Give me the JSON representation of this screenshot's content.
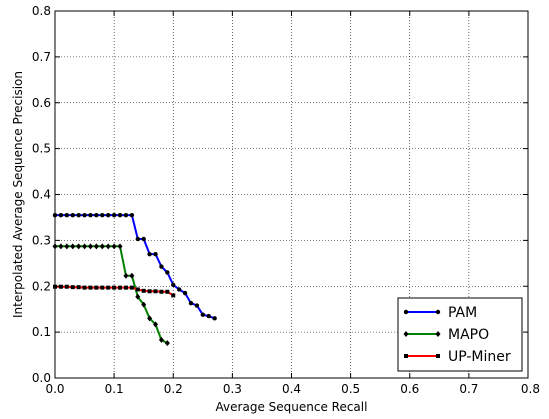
{
  "chart_data": {
    "type": "line",
    "xlabel": "Average Sequence Recall",
    "ylabel": "Interpolated Average Sequence Precision",
    "xlim": [
      0.0,
      0.8
    ],
    "ylim": [
      0.0,
      0.8
    ],
    "x_ticks": [
      "0.0",
      "0.1",
      "0.2",
      "0.3",
      "0.4",
      "0.5",
      "0.6",
      "0.7",
      "0.8"
    ],
    "y_ticks": [
      "0.0",
      "0.1",
      "0.2",
      "0.3",
      "0.4",
      "0.5",
      "0.6",
      "0.7",
      "0.8"
    ],
    "grid": true,
    "legend_position": "bottom-right",
    "series": [
      {
        "name": "PAM",
        "color": "#0000ff",
        "x": [
          0.0,
          0.01,
          0.02,
          0.03,
          0.04,
          0.05,
          0.06,
          0.07,
          0.08,
          0.09,
          0.1,
          0.11,
          0.12,
          0.13,
          0.14,
          0.15,
          0.16,
          0.17,
          0.18,
          0.19,
          0.2,
          0.21,
          0.22,
          0.23,
          0.24,
          0.25,
          0.26,
          0.27
        ],
        "y": [
          0.355,
          0.355,
          0.355,
          0.355,
          0.355,
          0.355,
          0.355,
          0.355,
          0.355,
          0.355,
          0.355,
          0.355,
          0.355,
          0.355,
          0.303,
          0.303,
          0.27,
          0.27,
          0.243,
          0.23,
          0.203,
          0.193,
          0.185,
          0.163,
          0.158,
          0.138,
          0.135,
          0.13
        ]
      },
      {
        "name": "MAPO",
        "color": "#008000",
        "x": [
          0.0,
          0.01,
          0.02,
          0.03,
          0.04,
          0.05,
          0.06,
          0.07,
          0.08,
          0.09,
          0.1,
          0.11,
          0.12,
          0.13,
          0.14,
          0.15,
          0.16,
          0.17,
          0.18,
          0.19
        ],
        "y": [
          0.287,
          0.287,
          0.287,
          0.287,
          0.287,
          0.287,
          0.287,
          0.287,
          0.287,
          0.287,
          0.287,
          0.287,
          0.223,
          0.223,
          0.177,
          0.16,
          0.13,
          0.117,
          0.083,
          0.076
        ]
      },
      {
        "name": "UP-Miner",
        "color": "#ff0000",
        "x": [
          0.0,
          0.01,
          0.02,
          0.03,
          0.04,
          0.05,
          0.06,
          0.07,
          0.08,
          0.09,
          0.1,
          0.11,
          0.12,
          0.13,
          0.14,
          0.15,
          0.16,
          0.17,
          0.18,
          0.19,
          0.2
        ],
        "y": [
          0.199,
          0.199,
          0.199,
          0.198,
          0.198,
          0.197,
          0.197,
          0.197,
          0.197,
          0.197,
          0.197,
          0.197,
          0.197,
          0.197,
          0.193,
          0.19,
          0.189,
          0.189,
          0.188,
          0.188,
          0.18
        ]
      }
    ]
  }
}
